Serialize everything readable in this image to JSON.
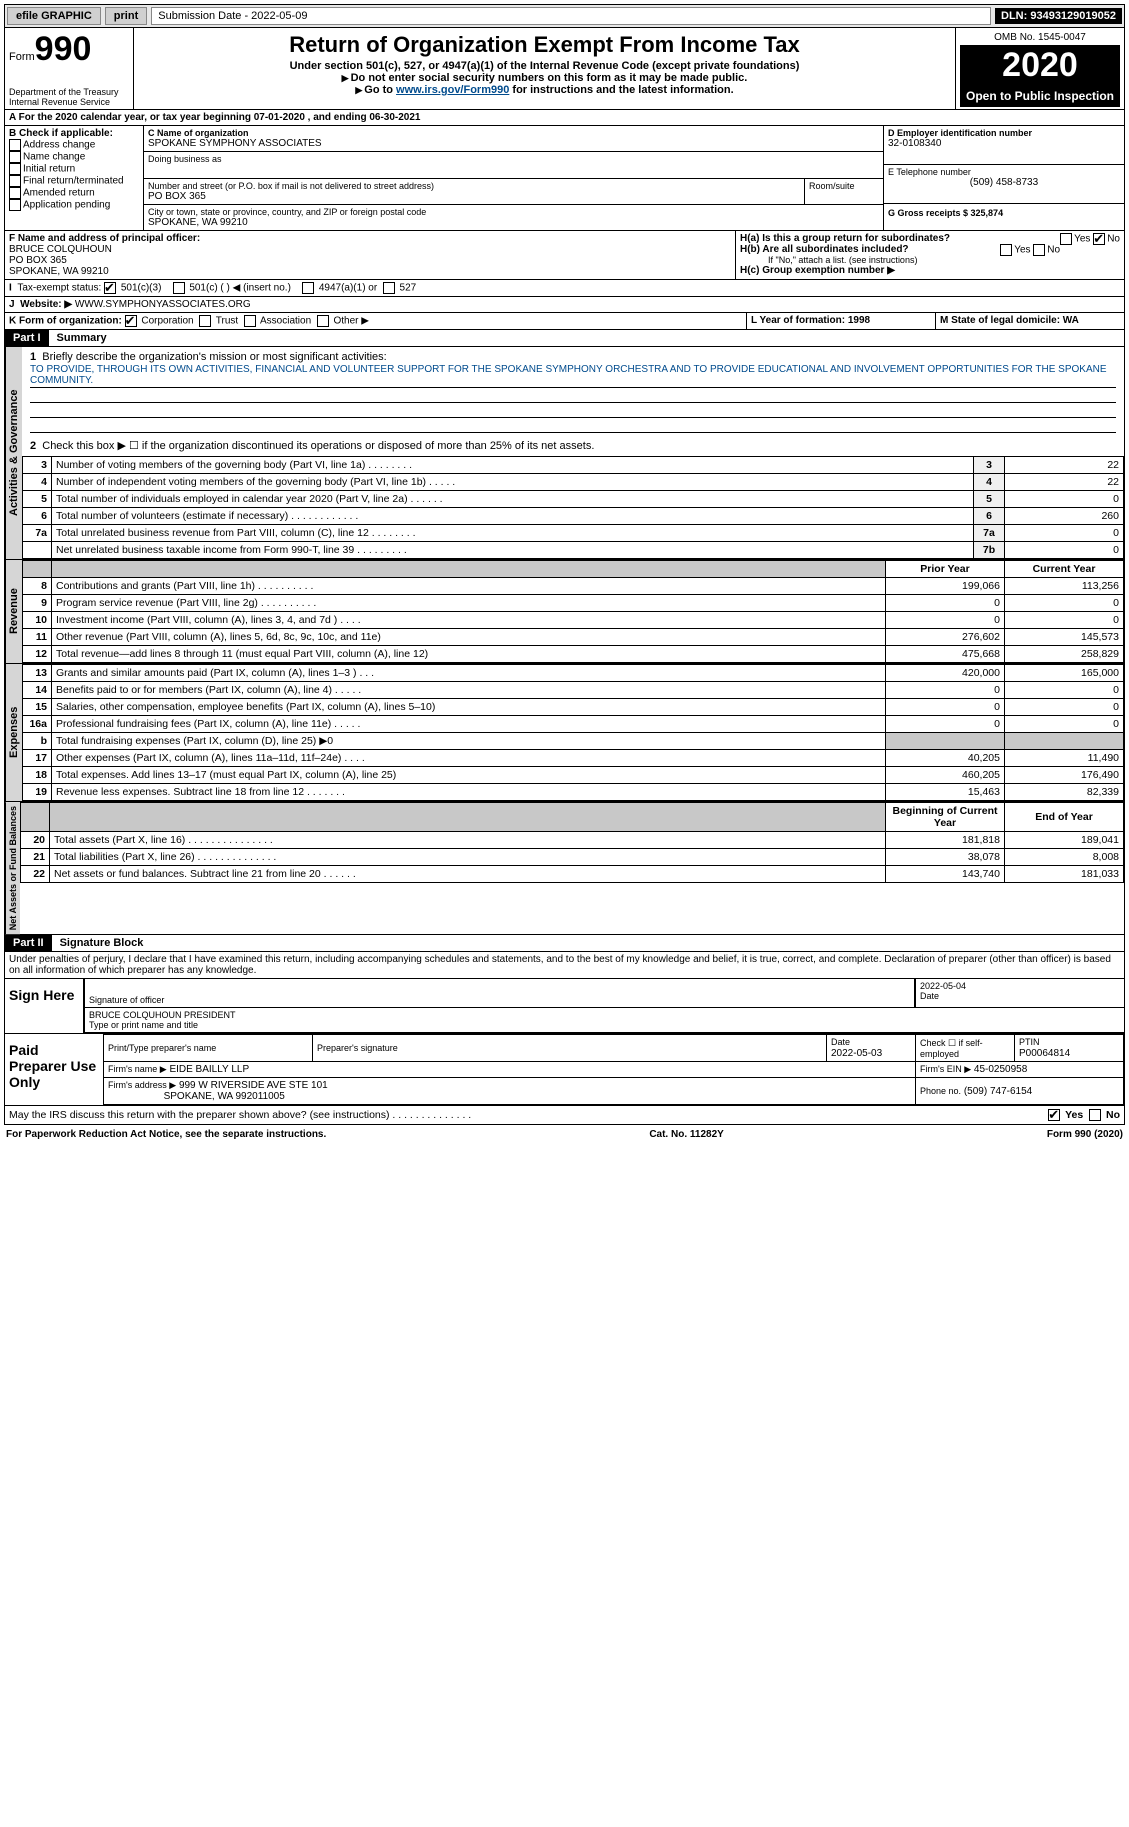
{
  "topbar": {
    "efile": "efile GRAPHIC",
    "print": "print",
    "submission": "Submission Date - 2022-05-09",
    "dln": "DLN: 93493129019052"
  },
  "header": {
    "form_label": "Form",
    "form_no": "990",
    "dept1": "Department of the Treasury",
    "dept2": "Internal Revenue Service",
    "title": "Return of Organization Exempt From Income Tax",
    "subtitle": "Under section 501(c), 527, or 4947(a)(1) of the Internal Revenue Code (except private foundations)",
    "note1": "Do not enter social security numbers on this form as it may be made public.",
    "note2_pre": "Go to ",
    "note2_link": "www.irs.gov/Form990",
    "note2_post": " for instructions and the latest information.",
    "omb": "OMB No. 1545-0047",
    "year": "2020",
    "open": "Open to Public Inspection"
  },
  "period": {
    "line_a": "For the 2020 calendar year, or tax year beginning 07-01-2020   , and ending 06-30-2021",
    "b_label": "B Check if applicable:",
    "b_items": [
      "Address change",
      "Name change",
      "Initial return",
      "Final return/terminated",
      "Amended return",
      "Application pending"
    ],
    "c_name_label": "C Name of organization",
    "c_name": "SPOKANE SYMPHONY ASSOCIATES",
    "dba_label": "Doing business as",
    "street_label": "Number and street (or P.O. box if mail is not delivered to street address)",
    "street": "PO BOX 365",
    "room_label": "Room/suite",
    "city_label": "City or town, state or province, country, and ZIP or foreign postal code",
    "city": "SPOKANE, WA  99210",
    "d_label": "D Employer identification number",
    "d_val": "32-0108340",
    "e_label": "E Telephone number",
    "e_val": "(509) 458-8733",
    "g_label": "G Gross receipts $ 325,874",
    "f_label": "F Name and address of principal officer:",
    "f_name": "BRUCE COLQUHOUN",
    "f_addr1": "PO BOX 365",
    "f_addr2": "SPOKANE, WA  99210",
    "ha_label": "H(a)  Is this a group return for subordinates?",
    "ha_yes": "Yes",
    "ha_no": "No",
    "hb_label": "H(b)  Are all subordinates included?",
    "hb_note": "If \"No,\" attach a list. (see instructions)",
    "hc_label": "H(c)  Group exemption number ▶",
    "i_label": "Tax-exempt status:",
    "i_501c3": "501(c)(3)",
    "i_501c": "501(c) (  ) ◀ (insert no.)",
    "i_4947": "4947(a)(1) or",
    "i_527": "527",
    "j_label": "Website: ▶",
    "j_val": "WWW.SYMPHONYASSOCIATES.ORG",
    "k_label": "K Form of organization:",
    "k_corp": "Corporation",
    "k_trust": "Trust",
    "k_assoc": "Association",
    "k_other": "Other ▶",
    "l_label": "L Year of formation: 1998",
    "m_label": "M State of legal domicile: WA"
  },
  "part1": {
    "hdr": "Part I",
    "title": "Summary",
    "l1_label": "Briefly describe the organization's mission or most significant activities:",
    "l1_text": "TO PROVIDE, THROUGH ITS OWN ACTIVITIES, FINANCIAL AND VOLUNTEER SUPPORT FOR THE SPOKANE SYMPHONY ORCHESTRA AND TO PROVIDE EDUCATIONAL AND INVOLVEMENT OPPORTUNITIES FOR THE SPOKANE COMMUNITY.",
    "l2": "Check this box ▶ ☐  if the organization discontinued its operations or disposed of more than 25% of its net assets.",
    "lines_gov": [
      {
        "n": "3",
        "t": "Number of voting members of the governing body (Part VI, line 1a)  .   .   .   .   .   .   .   .",
        "b": "3",
        "v": "22"
      },
      {
        "n": "4",
        "t": "Number of independent voting members of the governing body (Part VI, line 1b)  .   .   .   .   .",
        "b": "4",
        "v": "22"
      },
      {
        "n": "5",
        "t": "Total number of individuals employed in calendar year 2020 (Part V, line 2a)  .   .   .   .   .   .",
        "b": "5",
        "v": "0"
      },
      {
        "n": "6",
        "t": "Total number of volunteers (estimate if necessary)  .   .   .   .   .   .   .   .   .   .   .   .",
        "b": "6",
        "v": "260"
      },
      {
        "n": "7a",
        "t": "Total unrelated business revenue from Part VIII, column (C), line 12  .   .   .   .   .   .   .   .",
        "b": "7a",
        "v": "0"
      },
      {
        "n": "",
        "t": "Net unrelated business taxable income from Form 990-T, line 39  .   .   .   .   .   .   .   .   .",
        "b": "7b",
        "v": "0"
      }
    ],
    "col_prior": "Prior Year",
    "col_current": "Current Year",
    "lines_rev": [
      {
        "n": "8",
        "t": "Contributions and grants (Part VIII, line 1h)  .   .   .   .   .   .   .   .   .   .",
        "p": "199,066",
        "c": "113,256"
      },
      {
        "n": "9",
        "t": "Program service revenue (Part VIII, line 2g)  .   .   .   .   .   .   .   .   .   .",
        "p": "0",
        "c": "0"
      },
      {
        "n": "10",
        "t": "Investment income (Part VIII, column (A), lines 3, 4, and 7d )  .   .   .   .",
        "p": "0",
        "c": "0"
      },
      {
        "n": "11",
        "t": "Other revenue (Part VIII, column (A), lines 5, 6d, 8c, 9c, 10c, and 11e)",
        "p": "276,602",
        "c": "145,573"
      },
      {
        "n": "12",
        "t": "Total revenue—add lines 8 through 11 (must equal Part VIII, column (A), line 12)",
        "p": "475,668",
        "c": "258,829"
      }
    ],
    "lines_exp": [
      {
        "n": "13",
        "t": "Grants and similar amounts paid (Part IX, column (A), lines 1–3 )  .   .   .",
        "p": "420,000",
        "c": "165,000"
      },
      {
        "n": "14",
        "t": "Benefits paid to or for members (Part IX, column (A), line 4)  .   .   .   .   .",
        "p": "0",
        "c": "0"
      },
      {
        "n": "15",
        "t": "Salaries, other compensation, employee benefits (Part IX, column (A), lines 5–10)",
        "p": "0",
        "c": "0"
      },
      {
        "n": "16a",
        "t": "Professional fundraising fees (Part IX, column (A), line 11e)  .   .   .   .   .",
        "p": "0",
        "c": "0"
      },
      {
        "n": "b",
        "t": "Total fundraising expenses (Part IX, column (D), line 25) ▶0",
        "p": "",
        "c": "",
        "grey": true
      },
      {
        "n": "17",
        "t": "Other expenses (Part IX, column (A), lines 11a–11d, 11f–24e)  .   .   .   .",
        "p": "40,205",
        "c": "11,490"
      },
      {
        "n": "18",
        "t": "Total expenses. Add lines 13–17 (must equal Part IX, column (A), line 25)",
        "p": "460,205",
        "c": "176,490"
      },
      {
        "n": "19",
        "t": "Revenue less expenses. Subtract line 18 from line 12  .   .   .   .   .   .   .",
        "p": "15,463",
        "c": "82,339"
      }
    ],
    "col_begin": "Beginning of Current Year",
    "col_end": "End of Year",
    "lines_net": [
      {
        "n": "20",
        "t": "Total assets (Part X, line 16)  .   .   .   .   .   .   .   .   .   .   .   .   .   .   .",
        "p": "181,818",
        "c": "189,041"
      },
      {
        "n": "21",
        "t": "Total liabilities (Part X, line 26)  .   .   .   .   .   .   .   .   .   .   .   .   .   .",
        "p": "38,078",
        "c": "8,008"
      },
      {
        "n": "22",
        "t": "Net assets or fund balances. Subtract line 21 from line 20  .   .   .   .   .   .",
        "p": "143,740",
        "c": "181,033"
      }
    ],
    "vlabel_gov": "Activities & Governance",
    "vlabel_rev": "Revenue",
    "vlabel_exp": "Expenses",
    "vlabel_net": "Net Assets or Fund Balances"
  },
  "part2": {
    "hdr": "Part II",
    "title": "Signature Block",
    "penalty": "Under penalties of perjury, I declare that I have examined this return, including accompanying schedules and statements, and to the best of my knowledge and belief, it is true, correct, and complete. Declaration of preparer (other than officer) is based on all information of which preparer has any knowledge.",
    "sign_here": "Sign Here",
    "sig_officer": "Signature of officer",
    "sig_date": "2022-05-04",
    "sig_date_label": "Date",
    "sig_name": "BRUCE COLQUHOUN  PRESIDENT",
    "sig_name_label": "Type or print name and title",
    "paid": "Paid Preparer Use Only",
    "prep_name_label": "Print/Type preparer's name",
    "prep_sig_label": "Preparer's signature",
    "prep_date_label": "Date",
    "prep_date": "2022-05-03",
    "prep_self": "Check ☐ if self-employed",
    "prep_ptin_label": "PTIN",
    "prep_ptin": "P00064814",
    "firm_name_label": "Firm's name    ▶",
    "firm_name": "EIDE BAILLY LLP",
    "firm_ein_label": "Firm's EIN ▶",
    "firm_ein": "45-0250958",
    "firm_addr_label": "Firm's address ▶",
    "firm_addr": "999 W RIVERSIDE AVE STE 101",
    "firm_addr2": "SPOKANE, WA  992011005",
    "firm_phone_label": "Phone no.",
    "firm_phone": "(509) 747-6154",
    "discuss": "May the IRS discuss this return with the preparer shown above? (see instructions)  .   .   .   .   .   .   .   .   .   .   .   .   .   .",
    "discuss_yes": "Yes",
    "discuss_no": "No"
  },
  "footer": {
    "left": "For Paperwork Reduction Act Notice, see the separate instructions.",
    "mid": "Cat. No. 11282Y",
    "right": "Form 990 (2020)"
  }
}
